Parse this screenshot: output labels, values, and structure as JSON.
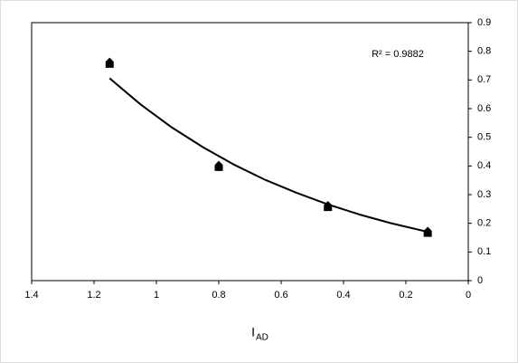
{
  "chart_data": {
    "type": "scatter",
    "annotation": "R² = 0.9882",
    "xlabel": "I",
    "xlabel_sub": "AD",
    "x": [
      1.15,
      0.8,
      0.45,
      0.13
    ],
    "values": [
      0.76,
      0.4,
      0.26,
      0.17
    ],
    "color": "#000000",
    "trendline": {
      "x": [
        1.15,
        1.05,
        0.95,
        0.85,
        0.75,
        0.65,
        0.55,
        0.45,
        0.35,
        0.25,
        0.13
      ],
      "values": [
        0.706,
        0.614,
        0.534,
        0.465,
        0.404,
        0.351,
        0.306,
        0.266,
        0.231,
        0.201,
        0.17
      ]
    },
    "xlim": [
      1.4,
      0
    ],
    "xticks": [
      1.4,
      1.2,
      1,
      0.8,
      0.6,
      0.4,
      0.2,
      0
    ],
    "ylim": [
      0,
      0.9
    ],
    "yticks": [
      0,
      0.1,
      0.2,
      0.3,
      0.4,
      0.5,
      0.6,
      0.7,
      0.8,
      0.9
    ],
    "y_axis_side": "right",
    "grid": false
  }
}
